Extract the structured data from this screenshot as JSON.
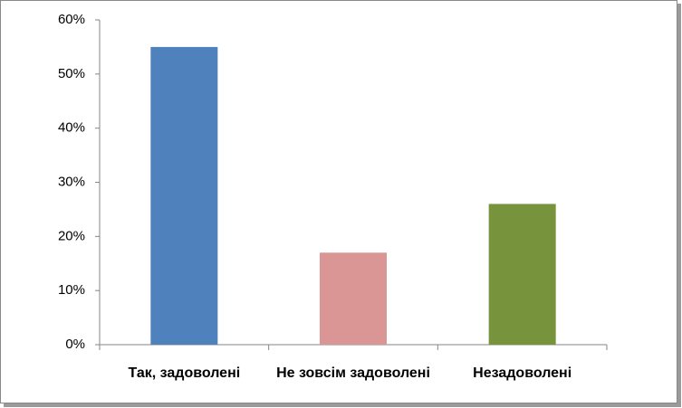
{
  "chart_data": {
    "type": "bar",
    "categories": [
      "Так, задоволені",
      "Не зовсім задоволені",
      "Незадоволені"
    ],
    "values": [
      55,
      17,
      26
    ],
    "colors": [
      "#4f81bd",
      "#d99694",
      "#77933c"
    ],
    "ylim": [
      0,
      60
    ],
    "yticks": [
      {
        "value": 0,
        "label": "0%"
      },
      {
        "value": 10,
        "label": "10%"
      },
      {
        "value": 20,
        "label": "20%"
      },
      {
        "value": 30,
        "label": "30%"
      },
      {
        "value": 40,
        "label": "40%"
      },
      {
        "value": 50,
        "label": "50%"
      },
      {
        "value": 60,
        "label": "60%"
      }
    ],
    "grid": false
  }
}
